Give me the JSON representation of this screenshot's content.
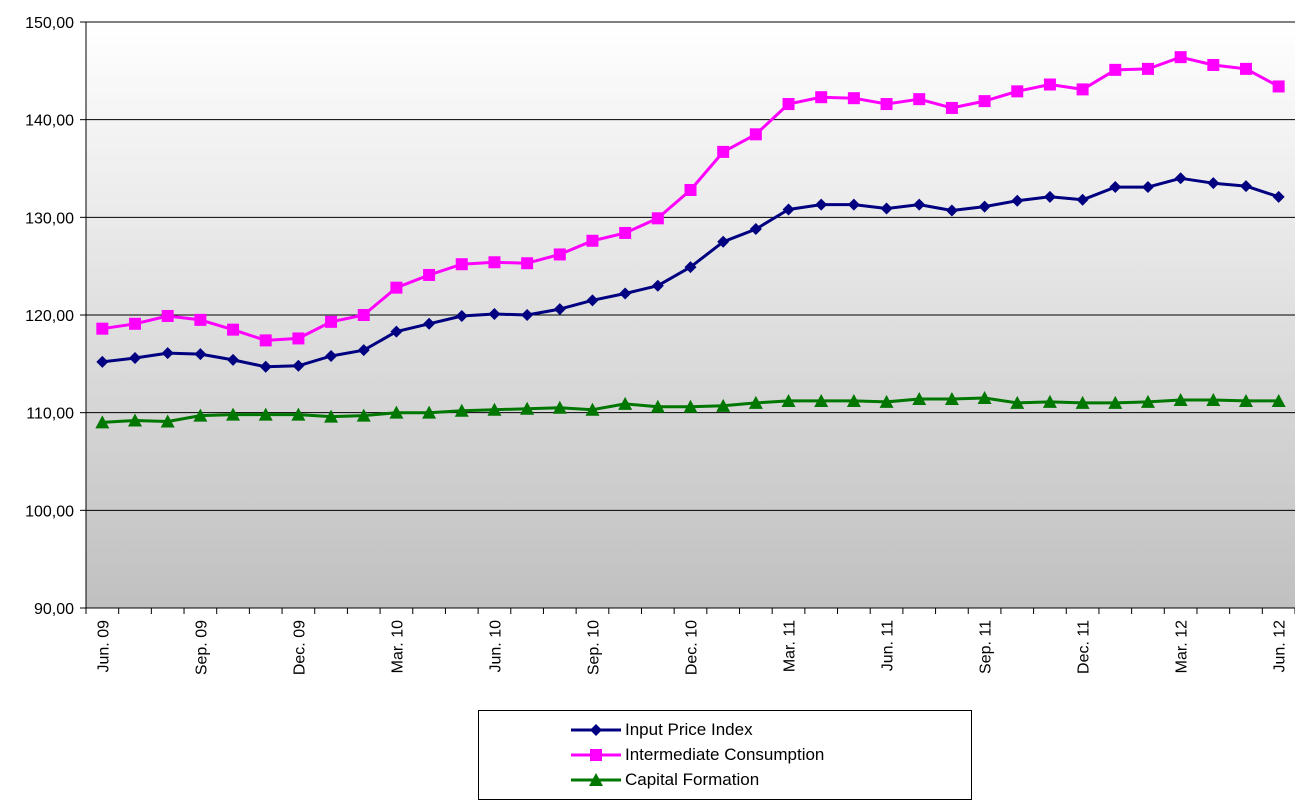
{
  "chart_data": {
    "type": "line",
    "title": "",
    "xlabel": "",
    "ylabel": "",
    "ylim": [
      90,
      150
    ],
    "yticks": [
      "90,00",
      "100,00",
      "110,00",
      "120,00",
      "130,00",
      "140,00",
      "150,00"
    ],
    "x_tick_labels": [
      "Jun. 09",
      "Sep. 09",
      "Dec. 09",
      "Mar. 10",
      "Jun. 10",
      "Sep. 10",
      "Dec. 10",
      "Mar. 11",
      "Jun. 11",
      "Sep. 11",
      "Dec. 11",
      "Mar. 12",
      "Jun. 12"
    ],
    "categories": [
      "Jun. 09",
      "Jul. 09",
      "Aug. 09",
      "Sep. 09",
      "Oct. 09",
      "Nov. 09",
      "Dec. 09",
      "Jan. 10",
      "Feb. 10",
      "Mar. 10",
      "Apr. 10",
      "May. 10",
      "Jun. 10",
      "Jul. 10",
      "Aug. 10",
      "Sep. 10",
      "Oct. 10",
      "Nov. 10",
      "Dec. 10",
      "Jan. 11",
      "Feb. 11",
      "Mar. 11",
      "Apr. 11",
      "May. 11",
      "Jun. 11",
      "Jul. 11",
      "Aug. 11",
      "Sep. 11",
      "Oct. 11",
      "Nov. 11",
      "Dec. 11",
      "Jan. 12",
      "Feb. 12",
      "Mar. 12",
      "Apr. 12",
      "May. 12",
      "Jun. 12"
    ],
    "grid": true,
    "legend_position": "bottom",
    "series": [
      {
        "name": "Input Price Index",
        "color": "#000080",
        "marker": "diamond",
        "values": [
          115.2,
          115.6,
          116.1,
          116.0,
          115.4,
          114.7,
          114.8,
          115.8,
          116.4,
          118.3,
          119.1,
          119.9,
          120.1,
          120.0,
          120.6,
          121.5,
          122.2,
          123.0,
          124.9,
          127.5,
          128.8,
          130.8,
          131.3,
          131.3,
          130.9,
          131.3,
          130.7,
          131.1,
          131.7,
          132.1,
          131.8,
          133.1,
          133.1,
          134.0,
          133.5,
          133.2,
          132.1
        ]
      },
      {
        "name": "Intermediate Consumption",
        "color": "#ff00ff",
        "marker": "square",
        "values": [
          118.6,
          119.1,
          119.9,
          119.5,
          118.5,
          117.4,
          117.6,
          119.3,
          120.0,
          122.8,
          124.1,
          125.2,
          125.4,
          125.3,
          126.2,
          127.6,
          128.4,
          129.9,
          132.8,
          136.7,
          138.5,
          141.6,
          142.3,
          142.2,
          141.6,
          142.1,
          141.2,
          141.9,
          142.9,
          143.6,
          143.1,
          145.1,
          145.2,
          146.4,
          145.6,
          145.2,
          143.4
        ]
      },
      {
        "name": "Capital Formation",
        "color": "#007700",
        "marker": "triangle",
        "values": [
          109.0,
          109.2,
          109.1,
          109.7,
          109.8,
          109.8,
          109.8,
          109.6,
          109.7,
          110.0,
          110.0,
          110.2,
          110.3,
          110.4,
          110.5,
          110.3,
          110.9,
          110.6,
          110.6,
          110.7,
          111.0,
          111.2,
          111.2,
          111.2,
          111.1,
          111.4,
          111.4,
          111.5,
          111.0,
          111.1,
          111.0,
          111.0,
          111.1,
          111.3,
          111.3,
          111.2,
          111.2
        ]
      }
    ]
  }
}
